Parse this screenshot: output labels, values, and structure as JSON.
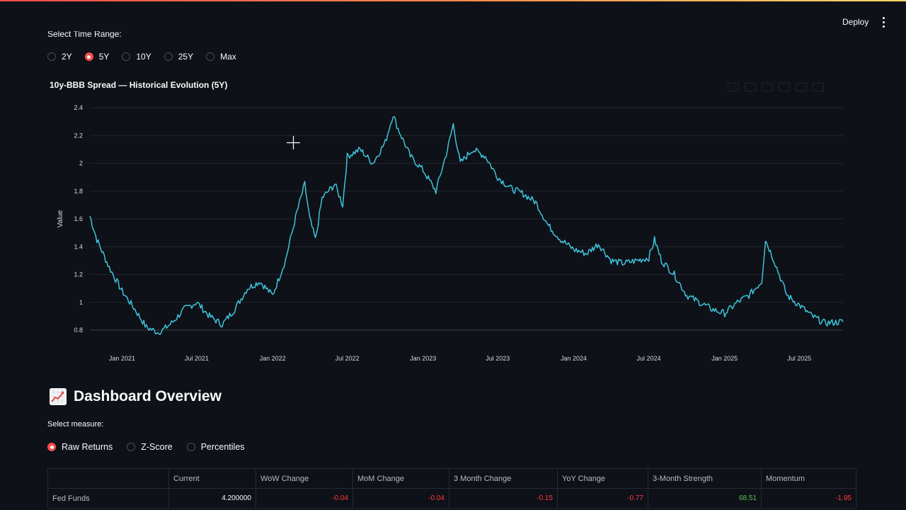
{
  "header": {
    "deploy_label": "Deploy",
    "menu_icon": "vertical-dots-icon"
  },
  "time_range": {
    "label": "Select Time Range:",
    "options": [
      "2Y",
      "5Y",
      "10Y",
      "25Y",
      "Max"
    ],
    "selected": "5Y"
  },
  "chart_title": "10y-BBB Spread — Historical Evolution (5Y)",
  "chart_data": {
    "type": "line",
    "title": "10y-BBB Spread — Historical Evolution (5Y)",
    "xlabel": "",
    "ylabel": "Value",
    "ylim": [
      0.8,
      2.4
    ],
    "yticks": [
      "0.8",
      "1",
      "1.2",
      "1.4",
      "1.6",
      "1.8",
      "2",
      "2.2",
      "2.4"
    ],
    "xticks": [
      "Jan 2021",
      "Jul 2021",
      "Jan 2022",
      "Jul 2022",
      "Jan 2023",
      "Jul 2023",
      "Jan 2024",
      "Jul 2024",
      "Jan 2025",
      "Jul 2025"
    ],
    "xrange": [
      "2020-10-15",
      "2025-10-15"
    ],
    "line_color": "#3fc4dc",
    "grid": true,
    "series": [
      {
        "x": [
          "2020-10-15",
          "2020-11-01",
          "2020-12-01",
          "2021-01-01",
          "2021-02-01",
          "2021-03-01",
          "2021-04-01",
          "2021-05-01",
          "2021-06-01",
          "2021-07-01",
          "2021-08-01",
          "2021-09-01",
          "2021-10-01",
          "2021-11-01",
          "2021-12-01",
          "2022-01-01",
          "2022-02-01",
          "2022-03-01",
          "2022-03-20",
          "2022-04-01",
          "2022-04-15",
          "2022-05-01",
          "2022-06-01",
          "2022-06-20",
          "2022-07-01",
          "2022-08-01",
          "2022-09-01",
          "2022-10-01",
          "2022-10-20",
          "2022-11-01",
          "2022-12-01",
          "2023-01-01",
          "2023-02-01",
          "2023-03-01",
          "2023-03-15",
          "2023-04-01",
          "2023-05-01",
          "2023-06-01",
          "2023-07-01",
          "2023-08-01",
          "2023-09-01",
          "2023-10-01",
          "2023-11-01",
          "2023-12-01",
          "2024-01-01",
          "2024-02-01",
          "2024-03-01",
          "2024-04-01",
          "2024-05-01",
          "2024-06-01",
          "2024-07-01",
          "2024-07-15",
          "2024-08-01",
          "2024-09-01",
          "2024-10-01",
          "2024-11-01",
          "2024-12-01",
          "2025-01-01",
          "2025-02-01",
          "2025-03-01",
          "2025-04-01",
          "2025-04-10",
          "2025-05-01",
          "2025-06-01",
          "2025-07-01",
          "2025-08-01",
          "2025-09-01",
          "2025-10-15"
        ],
        "y": [
          1.62,
          1.45,
          1.25,
          1.08,
          0.95,
          0.82,
          0.78,
          0.85,
          0.95,
          1.0,
          0.9,
          0.84,
          0.95,
          1.1,
          1.15,
          1.05,
          1.3,
          1.65,
          1.85,
          1.6,
          1.45,
          1.75,
          1.85,
          1.7,
          2.05,
          2.1,
          2.0,
          2.15,
          2.35,
          2.25,
          2.05,
          1.95,
          1.8,
          2.1,
          2.28,
          2.0,
          2.1,
          2.05,
          1.9,
          1.82,
          1.78,
          1.72,
          1.55,
          1.45,
          1.38,
          1.35,
          1.42,
          1.3,
          1.28,
          1.3,
          1.32,
          1.45,
          1.3,
          1.2,
          1.05,
          1.0,
          0.95,
          0.92,
          1.0,
          1.05,
          1.15,
          1.45,
          1.3,
          1.05,
          0.98,
          0.9,
          0.85,
          0.86
        ]
      }
    ]
  },
  "dashboard": {
    "title": "Dashboard Overview",
    "measure_label": "Select measure:",
    "measures": [
      "Raw Returns",
      "Z-Score",
      "Percentiles"
    ],
    "selected_measure": "Raw Returns",
    "columns": [
      "",
      "Current",
      "WoW Change",
      "MoM Change",
      "3 Month Change",
      "YoY Change",
      "3-Month Strength",
      "Momentum"
    ],
    "rows": [
      {
        "name": "Fed Funds",
        "current": "4.200000",
        "wow": "-0.04",
        "mom": "-0.04",
        "three_month": "-0.15",
        "yoy": "-0.77",
        "strength": "68.51",
        "momentum": "-1.95"
      }
    ]
  }
}
